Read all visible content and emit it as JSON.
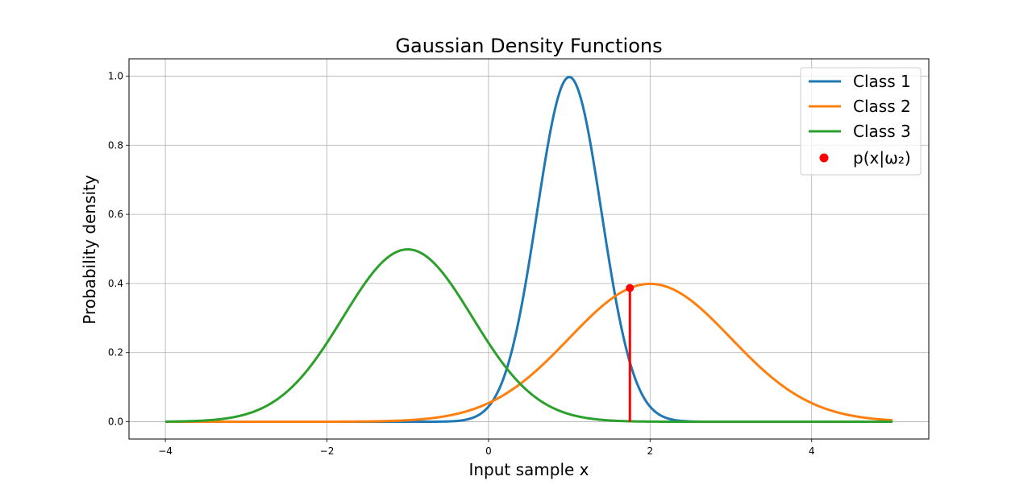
{
  "chart_data": {
    "type": "line",
    "title": "Gaussian Density Functions",
    "xlabel": "Input sample x",
    "ylabel": "Probability density",
    "xlim": [
      -4.45,
      5.45
    ],
    "ylim": [
      -0.05,
      1.05
    ],
    "x_ticks": [
      {
        "value": -4,
        "label": "−4"
      },
      {
        "value": -2,
        "label": "−2"
      },
      {
        "value": 0,
        "label": "0"
      },
      {
        "value": 2,
        "label": "2"
      },
      {
        "value": 4,
        "label": "4"
      }
    ],
    "y_ticks": [
      {
        "value": 0.0,
        "label": "0.0"
      },
      {
        "value": 0.2,
        "label": "0.2"
      },
      {
        "value": 0.4,
        "label": "0.4"
      },
      {
        "value": 0.6,
        "label": "0.6"
      },
      {
        "value": 0.8,
        "label": "0.8"
      },
      {
        "value": 1.0,
        "label": "1.0"
      }
    ],
    "grid": true,
    "x_range": [
      -4,
      5
    ],
    "series": [
      {
        "name": "Class 1",
        "color": "#1f77b4",
        "mu": 1.0,
        "sigma": 0.4
      },
      {
        "name": "Class 2",
        "color": "#ff7f0e",
        "mu": 2.0,
        "sigma": 1.0
      },
      {
        "name": "Class 3",
        "color": "#2ca02c",
        "mu": -1.0,
        "sigma": 0.8
      }
    ],
    "marker": {
      "name": "p(x|ω₂)",
      "color": "#ff0000",
      "x": 1.75,
      "y": 0.387
    },
    "legend_placement": "top-right"
  }
}
